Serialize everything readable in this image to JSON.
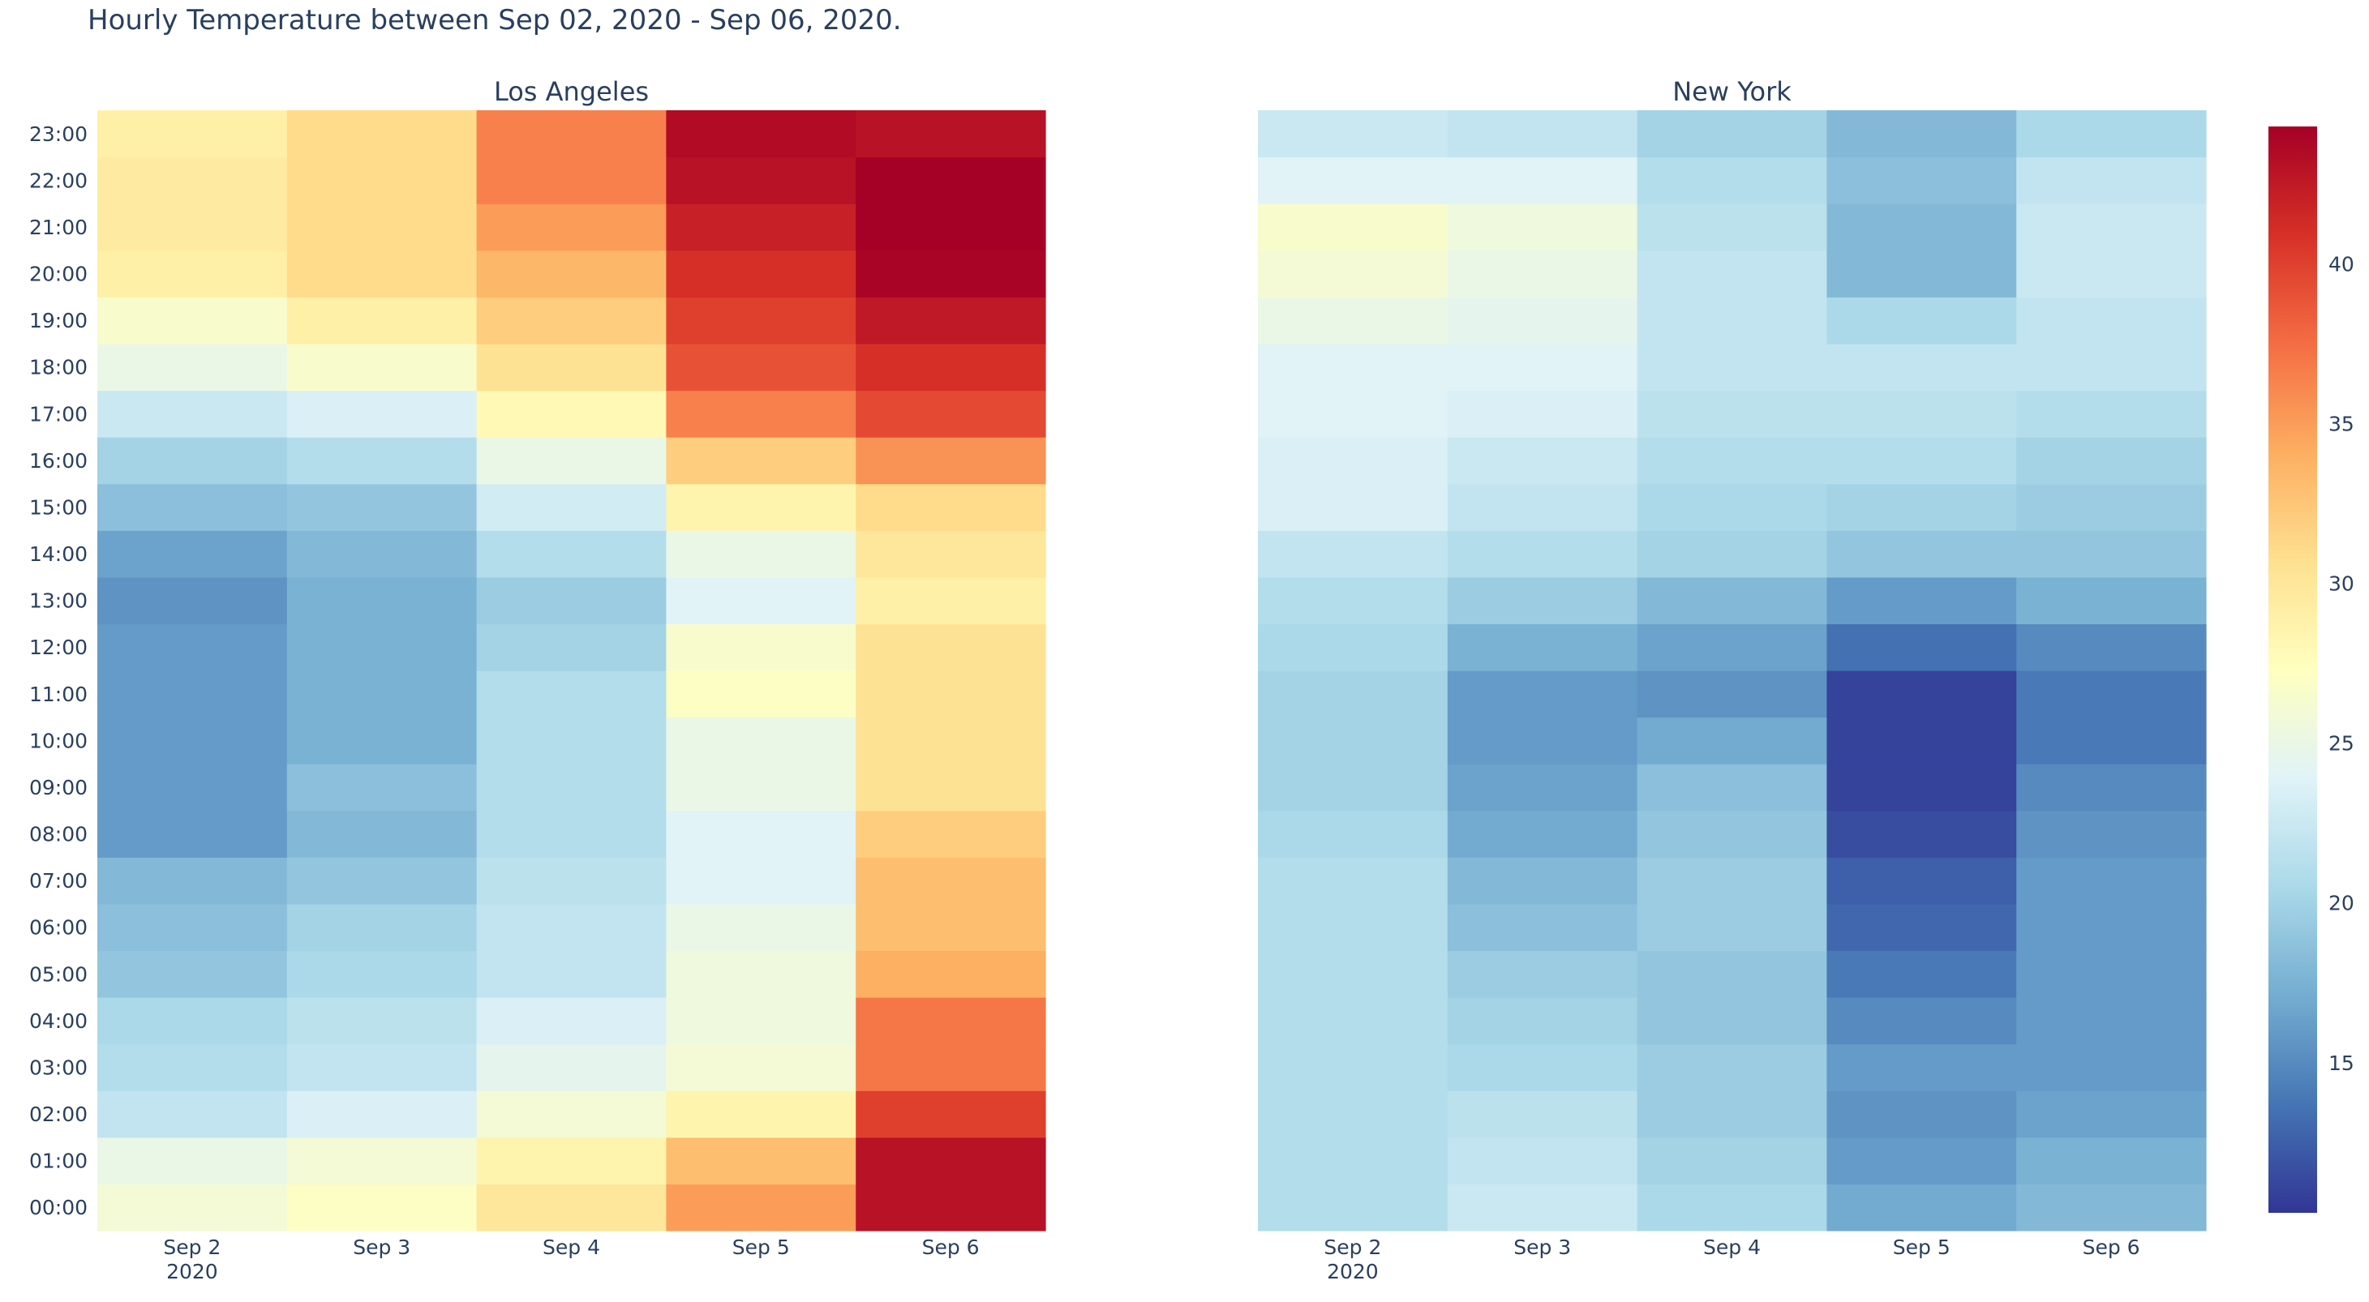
{
  "chart_data": {
    "type": "heatmap",
    "title": "Hourly Temperature between Sep 02, 2020 - Sep 06, 2020.",
    "x_categories": [
      "Sep 2",
      "Sep 3",
      "Sep 4",
      "Sep 5",
      "Sep 6"
    ],
    "x_year_label": "2020",
    "y_categories": [
      "00:00",
      "01:00",
      "02:00",
      "03:00",
      "04:00",
      "05:00",
      "06:00",
      "07:00",
      "08:00",
      "09:00",
      "10:00",
      "11:00",
      "12:00",
      "13:00",
      "14:00",
      "15:00",
      "16:00",
      "17:00",
      "18:00",
      "19:00",
      "20:00",
      "21:00",
      "22:00",
      "23:00"
    ],
    "colorscale": "RdYlBu (reversed)",
    "zmin": 10.3,
    "zmax": 44.3,
    "colorbar_ticks": [
      15,
      20,
      25,
      30,
      35,
      40
    ],
    "colorscale_colors": [
      "#313695",
      "#4575b4",
      "#74add1",
      "#abd9e9",
      "#e0f3f8",
      "#ffffbf",
      "#fee090",
      "#fdae61",
      "#f46d43",
      "#d73027",
      "#a50026"
    ],
    "panels": [
      {
        "name": "Los Angeles",
        "values_by_hour": [
          [
            26.0,
            27.0,
            30.0,
            35.0,
            43.0
          ],
          [
            25.0,
            26.0,
            28.5,
            33.0,
            43.0
          ],
          [
            22.0,
            23.5,
            26.0,
            28.5,
            40.0
          ],
          [
            21.0,
            22.0,
            24.5,
            26.0,
            37.0
          ],
          [
            20.5,
            21.5,
            23.5,
            25.5,
            37.0
          ],
          [
            19.0,
            20.5,
            22.0,
            25.5,
            34.0
          ],
          [
            18.5,
            20.0,
            22.0,
            25.0,
            33.0
          ],
          [
            18.0,
            19.0,
            21.5,
            24.0,
            33.0
          ],
          [
            16.0,
            18.0,
            21.0,
            24.0,
            32.0
          ],
          [
            16.0,
            18.5,
            21.0,
            25.0,
            30.5
          ],
          [
            16.0,
            17.5,
            21.0,
            25.0,
            30.5
          ],
          [
            16.0,
            17.5,
            21.0,
            27.0,
            30.5
          ],
          [
            16.0,
            17.5,
            20.0,
            26.5,
            30.5
          ],
          [
            15.5,
            17.5,
            19.5,
            24.0,
            29.0
          ],
          [
            16.5,
            18.0,
            21.0,
            25.0,
            30.0
          ],
          [
            18.5,
            19.0,
            23.0,
            28.5,
            31.0
          ],
          [
            20.0,
            21.0,
            25.0,
            32.0,
            35.5
          ],
          [
            22.5,
            23.5,
            28.0,
            36.5,
            39.5
          ],
          [
            25.0,
            26.5,
            30.5,
            39.0,
            41.0
          ],
          [
            26.5,
            29.0,
            32.0,
            40.0,
            42.5
          ],
          [
            29.0,
            31.0,
            33.5,
            41.0,
            44.0
          ],
          [
            29.5,
            31.0,
            35.0,
            42.0,
            44.3
          ],
          [
            29.5,
            31.0,
            36.5,
            43.0,
            44.3
          ],
          [
            29.0,
            31.0,
            36.5,
            43.5,
            43.0
          ]
        ]
      },
      {
        "name": "New York",
        "values_by_hour": [
          [
            21.0,
            22.5,
            20.5,
            17.0,
            18.0
          ],
          [
            21.0,
            22.0,
            20.0,
            16.0,
            17.5
          ],
          [
            21.0,
            21.5,
            19.5,
            15.5,
            16.5
          ],
          [
            21.0,
            20.5,
            19.5,
            16.0,
            16.0
          ],
          [
            21.0,
            20.0,
            19.0,
            15.0,
            16.0
          ],
          [
            21.0,
            19.5,
            19.0,
            14.0,
            16.0
          ],
          [
            21.0,
            18.5,
            19.5,
            13.0,
            16.0
          ],
          [
            21.0,
            18.0,
            19.5,
            12.5,
            16.0
          ],
          [
            20.5,
            17.0,
            19.0,
            11.5,
            15.5
          ],
          [
            20.0,
            16.5,
            18.5,
            11.0,
            15.0
          ],
          [
            20.0,
            16.0,
            17.0,
            11.0,
            14.0
          ],
          [
            20.0,
            16.0,
            15.5,
            11.0,
            14.0
          ],
          [
            20.5,
            17.5,
            16.5,
            13.5,
            15.0
          ],
          [
            21.0,
            19.5,
            18.0,
            16.0,
            17.5
          ],
          [
            22.0,
            21.0,
            20.0,
            19.0,
            19.0
          ],
          [
            23.5,
            22.0,
            20.5,
            20.0,
            19.5
          ],
          [
            23.5,
            22.5,
            21.0,
            21.0,
            20.0
          ],
          [
            24.0,
            23.5,
            21.5,
            21.5,
            21.0
          ],
          [
            24.0,
            24.0,
            22.0,
            22.0,
            22.0
          ],
          [
            25.0,
            24.5,
            22.0,
            20.5,
            22.0
          ],
          [
            26.0,
            25.0,
            22.0,
            18.0,
            22.5
          ],
          [
            26.5,
            25.5,
            21.5,
            18.0,
            22.5
          ],
          [
            24.0,
            24.0,
            21.0,
            18.5,
            22.0
          ],
          [
            22.5,
            22.0,
            20.0,
            18.0,
            20.5
          ]
        ]
      }
    ]
  }
}
